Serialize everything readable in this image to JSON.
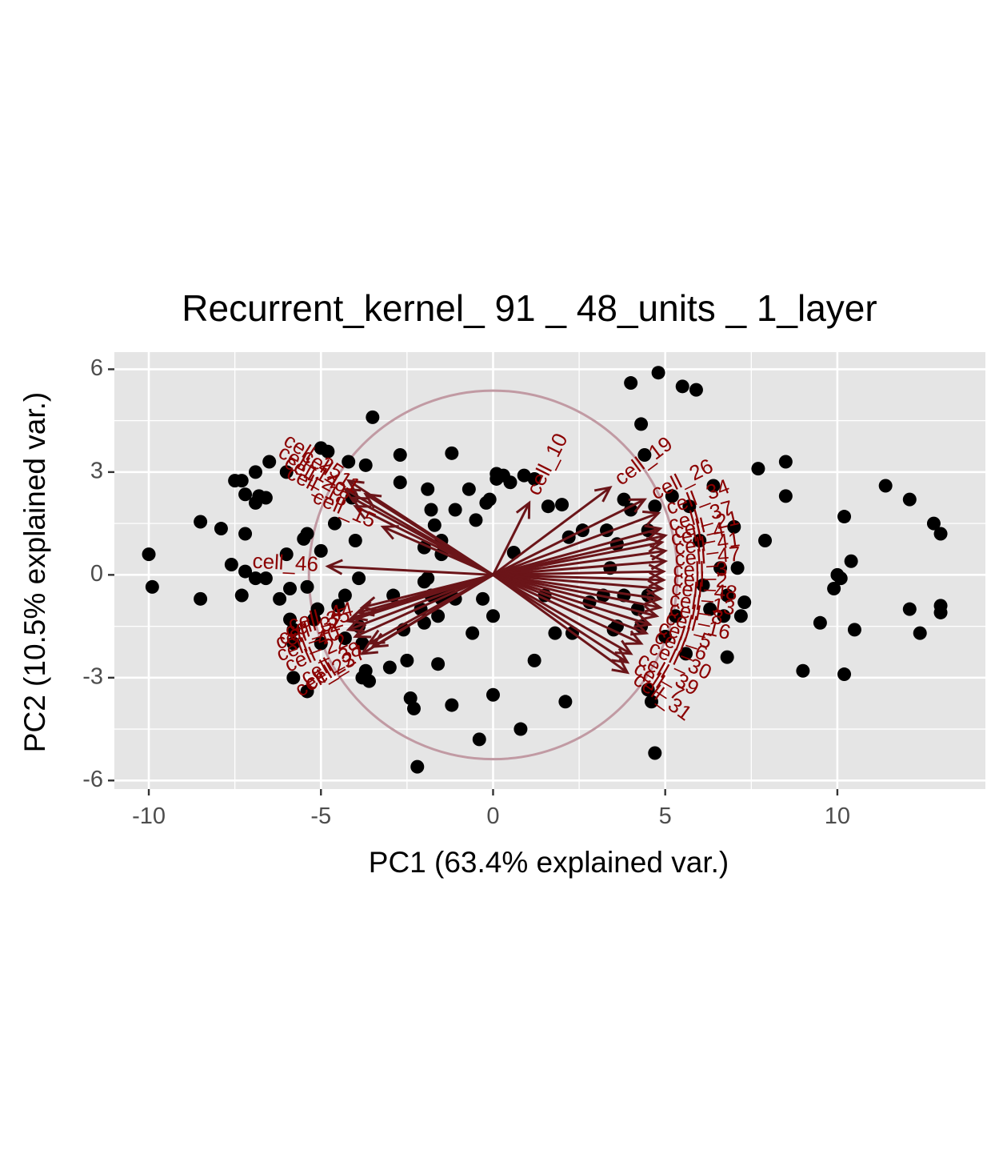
{
  "chart_data": {
    "type": "scatter",
    "title": "Recurrent_kernel_ 91 _ 48_units _ 1_layer",
    "xlabel": "PC1 (63.4% explained var.)",
    "ylabel": "PC2 (10.5% explained var.)",
    "xlim": [
      -11.0,
      14.3
    ],
    "ylim": [
      -6.25,
      6.5
    ],
    "x_ticks": [
      -10,
      -5,
      0,
      5,
      10
    ],
    "x_tick_labels": [
      "-10",
      "-5",
      "0",
      "5",
      "10"
    ],
    "y_ticks": [
      -6,
      -3,
      0,
      3,
      6
    ],
    "y_tick_labels": [
      "-6",
      "-3",
      "0",
      "3",
      "6"
    ],
    "grid": true,
    "legend": "none",
    "colors": {
      "panel": "#e5e5e5",
      "grid": "#ffffff",
      "points": "#000000",
      "arrows": "#6b1519",
      "labels": "#8b0000",
      "circle": "#c19aa3"
    },
    "correlation_circle_radius": 5.35,
    "points": [
      [
        -10.0,
        0.6
      ],
      [
        -9.9,
        -0.35
      ],
      [
        -8.5,
        1.55
      ],
      [
        -8.5,
        -0.7
      ],
      [
        -7.9,
        1.35
      ],
      [
        -7.6,
        0.3
      ],
      [
        -7.5,
        2.75
      ],
      [
        -7.3,
        2.75
      ],
      [
        -7.2,
        1.2
      ],
      [
        -7.2,
        2.35
      ],
      [
        -7.2,
        0.1
      ],
      [
        -7.3,
        -0.6
      ],
      [
        -6.9,
        2.1
      ],
      [
        -6.8,
        2.3
      ],
      [
        -6.6,
        2.25
      ],
      [
        -6.5,
        3.3
      ],
      [
        -6.9,
        3.0
      ],
      [
        -6.9,
        -0.1
      ],
      [
        -6.6,
        -0.1
      ],
      [
        -6.2,
        -0.7
      ],
      [
        -6.0,
        3.0
      ],
      [
        -6.0,
        0.6
      ],
      [
        -5.9,
        -0.4
      ],
      [
        -5.9,
        -1.3
      ],
      [
        -5.8,
        -1.6
      ],
      [
        -5.8,
        -2.0
      ],
      [
        -5.8,
        -3.0
      ],
      [
        -5.5,
        1.05
      ],
      [
        -5.4,
        -0.35
      ],
      [
        -5.4,
        1.2
      ],
      [
        -5.4,
        -3.4
      ],
      [
        -5.2,
        -1.3
      ],
      [
        -5.0,
        0.7
      ],
      [
        -5.1,
        -1.0
      ],
      [
        -5.0,
        -2.0
      ],
      [
        -5.0,
        3.7
      ],
      [
        -4.8,
        3.6
      ],
      [
        -4.6,
        1.5
      ],
      [
        -4.5,
        -0.9
      ],
      [
        -4.3,
        -0.6
      ],
      [
        -4.3,
        -1.85
      ],
      [
        -4.2,
        3.3
      ],
      [
        -4.0,
        1.0
      ],
      [
        -4.1,
        2.25
      ],
      [
        -3.9,
        -0.1
      ],
      [
        -3.9,
        -1.5
      ],
      [
        -3.8,
        -2.0
      ],
      [
        -3.7,
        -2.8
      ],
      [
        -3.7,
        3.2
      ],
      [
        -3.5,
        4.6
      ],
      [
        -3.8,
        -3.0
      ],
      [
        -3.6,
        -3.1
      ],
      [
        -3.0,
        -2.7
      ],
      [
        -2.9,
        -0.6
      ],
      [
        -2.7,
        2.7
      ],
      [
        -2.7,
        3.5
      ],
      [
        -2.6,
        -1.6
      ],
      [
        -2.5,
        -2.5
      ],
      [
        -2.4,
        -3.6
      ],
      [
        -2.3,
        -3.9
      ],
      [
        -2.2,
        -5.6
      ],
      [
        -2.1,
        -1.0
      ],
      [
        -2.0,
        -1.4
      ],
      [
        -2.0,
        -0.2
      ],
      [
        -2.0,
        0.8
      ],
      [
        -1.9,
        -0.1
      ],
      [
        -1.8,
        -0.6
      ],
      [
        -1.9,
        2.5
      ],
      [
        -1.8,
        1.9
      ],
      [
        -1.7,
        1.45
      ],
      [
        -1.6,
        -1.2
      ],
      [
        -1.6,
        -2.6
      ],
      [
        -1.5,
        -0.7
      ],
      [
        -1.5,
        0.6
      ],
      [
        -1.5,
        1.0
      ],
      [
        -1.3,
        -0.5
      ],
      [
        -1.2,
        3.55
      ],
      [
        -1.1,
        1.9
      ],
      [
        -1.2,
        -3.8
      ],
      [
        -1.1,
        -0.7
      ],
      [
        -0.7,
        2.5
      ],
      [
        -0.6,
        -1.7
      ],
      [
        -0.5,
        1.6
      ],
      [
        -0.4,
        -4.8
      ],
      [
        -0.3,
        -0.7
      ],
      [
        -0.2,
        2.1
      ],
      [
        -0.1,
        2.2
      ],
      [
        0.0,
        -3.5
      ],
      [
        0.0,
        -1.2
      ],
      [
        0.1,
        2.95
      ],
      [
        0.1,
        2.8
      ],
      [
        0.3,
        2.9
      ],
      [
        0.5,
        2.7
      ],
      [
        0.6,
        0.65
      ],
      [
        0.8,
        -4.5
      ],
      [
        0.9,
        2.9
      ],
      [
        1.2,
        2.8
      ],
      [
        1.2,
        -2.5
      ],
      [
        1.5,
        -0.6
      ],
      [
        1.6,
        2.0
      ],
      [
        1.8,
        -1.7
      ],
      [
        2.0,
        2.05
      ],
      [
        2.1,
        -3.7
      ],
      [
        2.2,
        1.1
      ],
      [
        2.3,
        -1.7
      ],
      [
        2.6,
        1.3
      ],
      [
        2.8,
        -0.8
      ],
      [
        3.2,
        -0.6
      ],
      [
        3.3,
        1.3
      ],
      [
        3.4,
        0.2
      ],
      [
        3.5,
        -1.6
      ],
      [
        3.6,
        -1.5
      ],
      [
        3.6,
        0.9
      ],
      [
        3.8,
        2.2
      ],
      [
        3.8,
        -0.6
      ],
      [
        4.0,
        5.6
      ],
      [
        4.0,
        1.9
      ],
      [
        4.2,
        -1.0
      ],
      [
        4.3,
        -1.5
      ],
      [
        4.3,
        4.4
      ],
      [
        4.4,
        3.5
      ],
      [
        4.5,
        1.3
      ],
      [
        4.5,
        -0.6
      ],
      [
        4.5,
        -3.35
      ],
      [
        4.6,
        -3.7
      ],
      [
        4.7,
        2.0
      ],
      [
        4.8,
        5.9
      ],
      [
        4.7,
        -5.2
      ],
      [
        5.0,
        -1.8
      ],
      [
        5.2,
        2.3
      ],
      [
        5.3,
        -1.2
      ],
      [
        5.5,
        5.5
      ],
      [
        5.6,
        -2.3
      ],
      [
        5.7,
        2.0
      ],
      [
        5.9,
        5.4
      ],
      [
        6.0,
        1.0
      ],
      [
        6.1,
        -0.3
      ],
      [
        6.3,
        -1.0
      ],
      [
        6.4,
        2.6
      ],
      [
        6.6,
        0.2
      ],
      [
        6.7,
        -1.2
      ],
      [
        6.8,
        -2.4
      ],
      [
        6.8,
        -0.6
      ],
      [
        7.0,
        1.4
      ],
      [
        7.1,
        0.2
      ],
      [
        7.2,
        -1.2
      ],
      [
        7.3,
        -0.8
      ],
      [
        7.7,
        3.1
      ],
      [
        7.9,
        1.0
      ],
      [
        8.5,
        3.3
      ],
      [
        8.5,
        2.3
      ],
      [
        9.0,
        -2.8
      ],
      [
        9.5,
        -1.4
      ],
      [
        9.9,
        -0.4
      ],
      [
        10.0,
        0.0
      ],
      [
        10.1,
        -0.1
      ],
      [
        10.2,
        1.7
      ],
      [
        10.2,
        -2.9
      ],
      [
        10.4,
        0.4
      ],
      [
        10.5,
        -1.6
      ],
      [
        11.4,
        2.6
      ],
      [
        12.1,
        2.2
      ],
      [
        12.1,
        -1.0
      ],
      [
        12.4,
        -1.7
      ],
      [
        12.8,
        1.5
      ],
      [
        13.0,
        1.2
      ],
      [
        13.0,
        -1.1
      ],
      [
        13.0,
        -0.9
      ]
    ],
    "arrows": [
      {
        "label": "cell_10",
        "x": 1.05,
        "y": 2.1
      },
      {
        "label": "cell_19",
        "x": 3.4,
        "y": 2.55
      },
      {
        "label": "cell_26",
        "x": 4.4,
        "y": 2.2
      },
      {
        "label": "cell_34",
        "x": 4.8,
        "y": 1.8
      },
      {
        "label": "cell_37",
        "x": 4.85,
        "y": 1.35
      },
      {
        "label": "cell_21",
        "x": 5.0,
        "y": 1.15
      },
      {
        "label": "cell_4",
        "x": 4.9,
        "y": 0.95
      },
      {
        "label": "cell_41",
        "x": 5.0,
        "y": 0.7
      },
      {
        "label": "cell_47",
        "x": 5.0,
        "y": 0.4
      },
      {
        "label": "cell_3",
        "x": 4.95,
        "y": 0.1
      },
      {
        "label": "cell_2",
        "x": 4.95,
        "y": -0.15
      },
      {
        "label": "cell_48",
        "x": 4.9,
        "y": -0.4
      },
      {
        "label": "cell_13",
        "x": 4.85,
        "y": -0.7
      },
      {
        "label": "cell_8",
        "x": 4.85,
        "y": -0.95
      },
      {
        "label": "cell_16",
        "x": 4.75,
        "y": -1.2
      },
      {
        "label": "cell_5",
        "x": 4.55,
        "y": -1.45
      },
      {
        "label": "cell_6",
        "x": 4.45,
        "y": -1.7
      },
      {
        "label": "cell_30",
        "x": 4.3,
        "y": -2.0
      },
      {
        "label": "cell_39",
        "x": 4.0,
        "y": -2.3
      },
      {
        "label": "cell_7",
        "x": 3.9,
        "y": -2.55
      },
      {
        "label": "cell_31",
        "x": 3.9,
        "y": -2.85
      },
      {
        "label": "cell_46",
        "x": -4.8,
        "y": 0.25
      },
      {
        "label": "cell_25",
        "x": -4.2,
        "y": 2.75
      },
      {
        "label": "cell_14",
        "x": -4.3,
        "y": 2.5
      },
      {
        "label": "cell_29",
        "x": -4.1,
        "y": 2.25
      },
      {
        "label": "cell_18",
        "x": -4.0,
        "y": 2.0
      },
      {
        "label": "cell_11",
        "x": -3.7,
        "y": 2.35
      },
      {
        "label": "cell_15",
        "x": -3.2,
        "y": 1.4
      },
      {
        "label": "cell_44",
        "x": -3.8,
        "y": -0.95
      },
      {
        "label": "cell_35",
        "x": -3.9,
        "y": -1.1
      },
      {
        "label": "cell_32",
        "x": -4.1,
        "y": -1.25
      },
      {
        "label": "cell_12",
        "x": -4.2,
        "y": -1.35
      },
      {
        "label": "cell_40",
        "x": -4.2,
        "y": -1.6
      },
      {
        "label": "cell_22",
        "x": -4.0,
        "y": -1.8
      },
      {
        "label": "cell_38",
        "x": -3.6,
        "y": -2.0
      },
      {
        "label": "cell_23",
        "x": -3.8,
        "y": -2.3
      },
      {
        "label": "cell_27",
        "x": -3.5,
        "y": -2.1
      }
    ]
  }
}
